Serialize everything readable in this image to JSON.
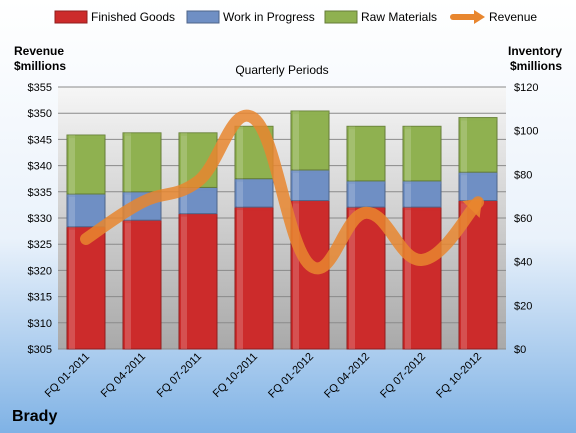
{
  "chart_data": {
    "type": "bar",
    "subtitle": "Quarterly Periods",
    "company": "Brady",
    "categories": [
      "FQ 01-2011",
      "FQ 04-2011",
      "FQ 07-2011",
      "FQ 10-2011",
      "FQ 01-2012",
      "FQ 04-2012",
      "FQ 07-2012",
      "FQ 10-2012"
    ],
    "stacked": true,
    "left_axis": {
      "label_line1": "Revenue",
      "label_line2": "$millions",
      "min": 305,
      "max": 355,
      "step": 5,
      "tick_labels": [
        "$305",
        "$310",
        "$315",
        "$320",
        "$325",
        "$330",
        "$335",
        "$340",
        "$345",
        "$350",
        "$355"
      ]
    },
    "right_axis": {
      "label_line1": "Inventory",
      "label_line2": "$millions",
      "min": 0,
      "max": 120,
      "step": 20,
      "tick_labels": [
        "$0",
        "$20",
        "$40",
        "$60",
        "$80",
        "$100",
        "$120"
      ]
    },
    "series": [
      {
        "name": "Finished Goods",
        "axis": "right",
        "color": "#cc2b2b",
        "values": [
          56,
          59,
          62,
          65,
          68,
          65,
          65,
          68
        ]
      },
      {
        "name": "Work in Progress",
        "axis": "right",
        "color": "#6f8fc4",
        "values": [
          15,
          13,
          12,
          13,
          14,
          12,
          12,
          13
        ]
      },
      {
        "name": "Raw Materials",
        "axis": "right",
        "color": "#8fb150",
        "values": [
          27,
          27,
          25,
          24,
          27,
          25,
          25,
          25
        ]
      },
      {
        "name": "Revenue",
        "type": "line",
        "axis": "left",
        "color": "#e8862f",
        "values": [
          326,
          333,
          337,
          349,
          321,
          331,
          322,
          333
        ]
      }
    ],
    "grid": true,
    "legend_position": "top"
  }
}
